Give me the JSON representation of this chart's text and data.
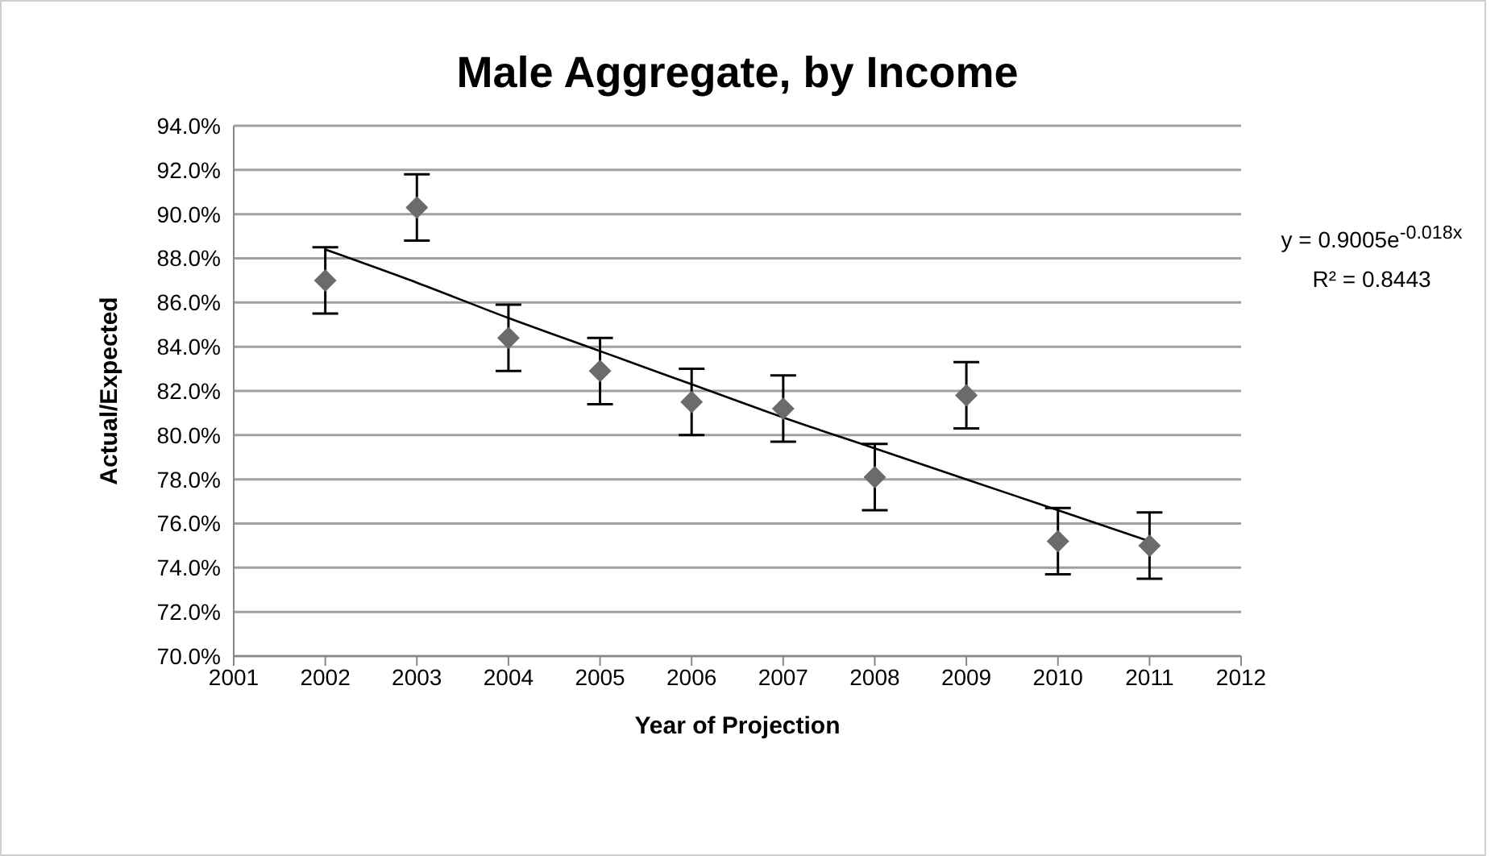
{
  "chart_data": {
    "type": "scatter",
    "title": "Male Aggregate, by Income",
    "xlabel": "Year of Projection",
    "ylabel": "Actual/Expected",
    "annotations": [
      "y = 0.9005e$^{-0.018x}$",
      "R² = 0.8443"
    ],
    "xlim": [
      2001,
      2012
    ],
    "xticks": [
      2001,
      2002,
      2003,
      2004,
      2005,
      2006,
      2007,
      2008,
      2009,
      2010,
      2011,
      2012
    ],
    "ylim": [
      70,
      94
    ],
    "yticks": [
      {
        "value": 70,
        "label": "70.0%"
      },
      {
        "value": 72,
        "label": "72.0%"
      },
      {
        "value": 74,
        "label": "74.0%"
      },
      {
        "value": 76,
        "label": "76.0%"
      },
      {
        "value": 78,
        "label": "78.0%"
      },
      {
        "value": 80,
        "label": "80.0%"
      },
      {
        "value": 82,
        "label": "82.0%"
      },
      {
        "value": 84,
        "label": "84.0%"
      },
      {
        "value": 86,
        "label": "86.0%"
      },
      {
        "value": 88,
        "label": "88.0%"
      },
      {
        "value": 90,
        "label": "90.0%"
      },
      {
        "value": 92,
        "label": "92.0%"
      },
      {
        "value": 94,
        "label": "94.0%"
      }
    ],
    "grid": "y",
    "legend": false,
    "series": [
      {
        "color": "#6b6b6b",
        "marker": "diamond",
        "x": [
          2002,
          2003,
          2004,
          2005,
          2006,
          2007,
          2008,
          2009,
          2010,
          2011
        ],
        "values": [
          87.0,
          90.3,
          84.4,
          82.9,
          81.5,
          81.2,
          78.1,
          81.8,
          75.2,
          75.0
        ],
        "errors": [
          1.5,
          1.5,
          1.5,
          1.5,
          1.5,
          1.5,
          1.5,
          1.5,
          1.5,
          1.5
        ]
      },
      {
        "type": "line",
        "color": "#000000",
        "marker": "none",
        "x": [
          2002,
          2003,
          2004,
          2005,
          2006,
          2007,
          2008,
          2009,
          2010,
          2011
        ],
        "values": [
          88.4,
          86.9,
          85.3,
          83.8,
          82.3,
          80.8,
          79.4,
          78.0,
          76.6,
          75.2
        ]
      }
    ]
  }
}
